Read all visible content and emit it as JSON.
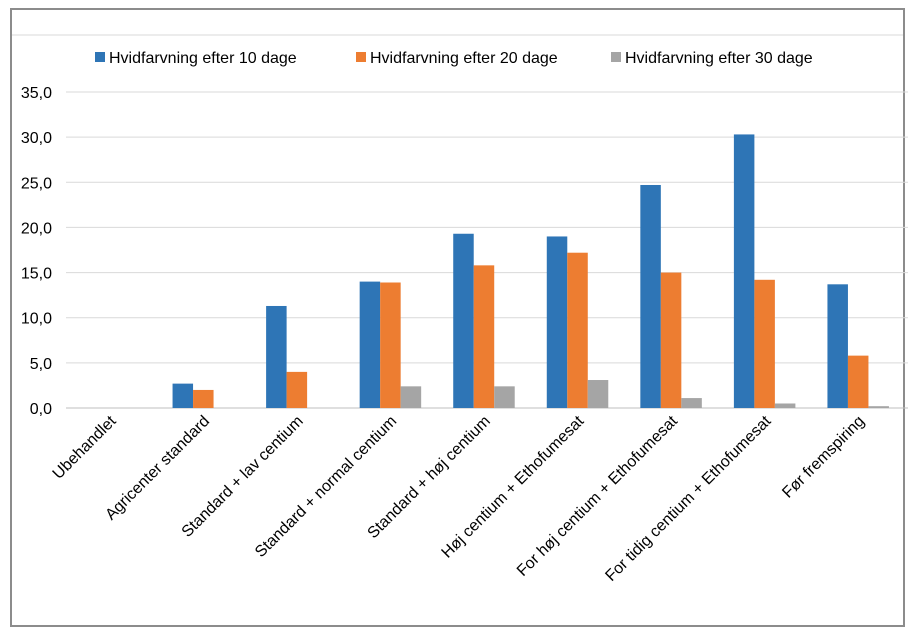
{
  "chart_data": {
    "type": "bar",
    "title": "",
    "xlabel": "",
    "ylabel": "",
    "ylim": [
      0,
      35
    ],
    "y_ticks": [
      "0,0",
      "5,0",
      "10,0",
      "15,0",
      "20,0",
      "25,0",
      "30,0",
      "35,0"
    ],
    "grid": true,
    "legend_position": "top",
    "categories": [
      "Ubehandlet",
      "Agricenter standard",
      "Standard + lav centium",
      "Standard + normal centium",
      "Standard + høj centium",
      "Høj centium + Ethofumesat",
      "For høj centium + Ethofumesat",
      "For tidig centium + Ethofumesat",
      "Før fremspiring"
    ],
    "series": [
      {
        "name": "Hvidfarvning efter 10 dage",
        "color": "#2e75b6",
        "values": [
          0,
          2.7,
          11.3,
          14.0,
          19.3,
          19.0,
          24.7,
          30.3,
          13.7
        ]
      },
      {
        "name": "Hvidfarvning efter 20 dage",
        "color": "#ed7d31",
        "values": [
          0,
          2.0,
          4.0,
          13.9,
          15.8,
          17.2,
          15.0,
          14.2,
          5.8
        ]
      },
      {
        "name": "Hvidfarvning efter 30 dage",
        "color": "#a5a5a5",
        "values": [
          0,
          0,
          0,
          2.4,
          2.4,
          3.1,
          1.1,
          0.5,
          0.2
        ]
      }
    ]
  }
}
